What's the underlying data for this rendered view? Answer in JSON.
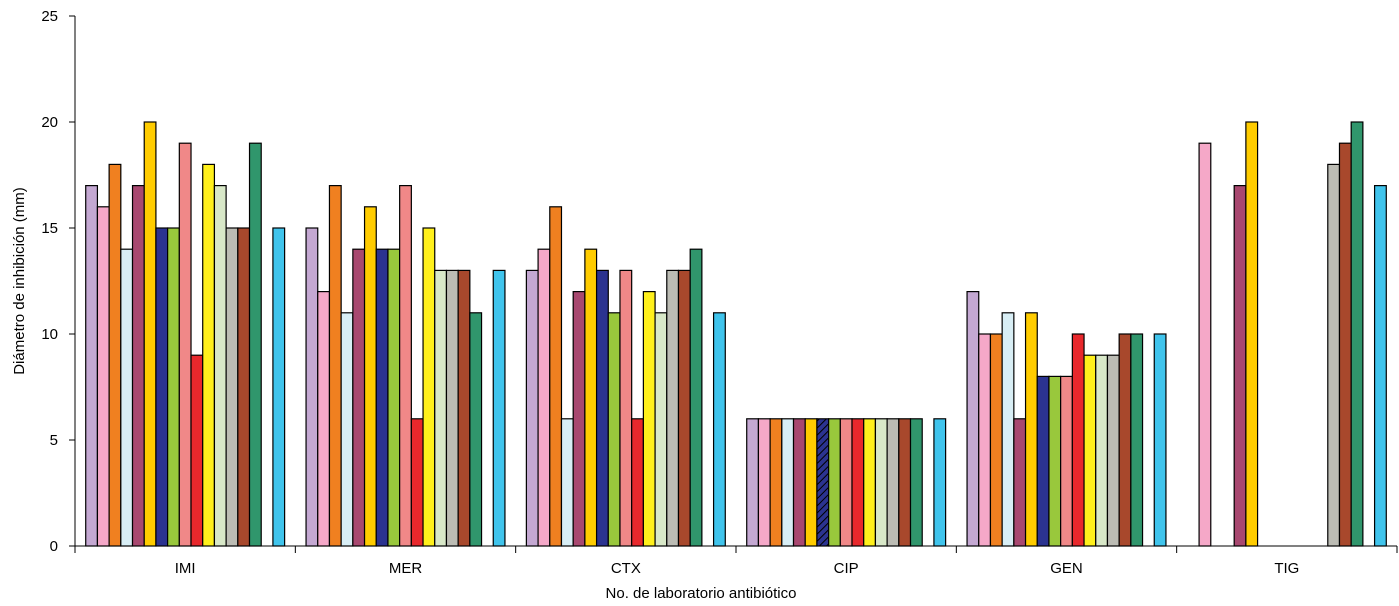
{
  "chart_data": {
    "type": "bar",
    "xlabel": "No. de laboratorio antibiótico",
    "ylabel": "Diámetro de inhibición (mm)",
    "ylim": [
      0,
      25
    ],
    "yticks": [
      "0",
      "5",
      "10",
      "15",
      "20",
      "25"
    ],
    "grid": false,
    "legend": "none",
    "categories": [
      "IMI",
      "MER",
      "CTX",
      "CIP",
      "GEN",
      "TIG"
    ],
    "series": [
      {
        "color": "#c4a8d2",
        "values": [
          17,
          15,
          13,
          6,
          12,
          null
        ]
      },
      {
        "color": "#f5a8c8",
        "values": [
          16,
          12,
          14,
          6,
          10,
          19
        ]
      },
      {
        "color": "#f08020",
        "values": [
          18,
          17,
          16,
          6,
          10,
          null
        ]
      },
      {
        "color": "#d8eef5",
        "values": [
          14,
          11,
          6,
          6,
          11,
          null
        ]
      },
      {
        "color": "#a84870",
        "values": [
          17,
          14,
          12,
          6,
          6,
          17
        ]
      },
      {
        "color": "#ffcc00",
        "values": [
          20,
          16,
          14,
          6,
          11,
          20
        ]
      },
      {
        "color": "#2b3390",
        "hatched": true,
        "hatched_categories": [
          "CIP"
        ],
        "values": [
          15,
          14,
          13,
          6,
          8,
          null
        ]
      },
      {
        "color": "#99c83c",
        "values": [
          15,
          14,
          11,
          6,
          8,
          null
        ]
      },
      {
        "color": "#f08888",
        "values": [
          19,
          17,
          13,
          6,
          8,
          null
        ]
      },
      {
        "color": "#e8282c",
        "values": [
          9,
          6,
          6,
          6,
          10,
          null
        ]
      },
      {
        "color": "#fff01c",
        "values": [
          18,
          15,
          12,
          6,
          9,
          null
        ]
      },
      {
        "color": "#d8e8c8",
        "values": [
          17,
          13,
          11,
          6,
          9,
          null
        ]
      },
      {
        "color": "#bcbcb4",
        "values": [
          15,
          13,
          13,
          6,
          9,
          18
        ]
      },
      {
        "color": "#a8482c",
        "values": [
          15,
          13,
          13,
          6,
          10,
          19
        ]
      },
      {
        "color": "#30966c",
        "values": [
          19,
          11,
          14,
          6,
          10,
          20
        ]
      },
      {
        "color": null,
        "values": [
          null,
          null,
          null,
          null,
          null,
          null
        ]
      },
      {
        "color": "#40c4ec",
        "values": [
          15,
          13,
          11,
          6,
          10,
          17
        ]
      }
    ]
  }
}
